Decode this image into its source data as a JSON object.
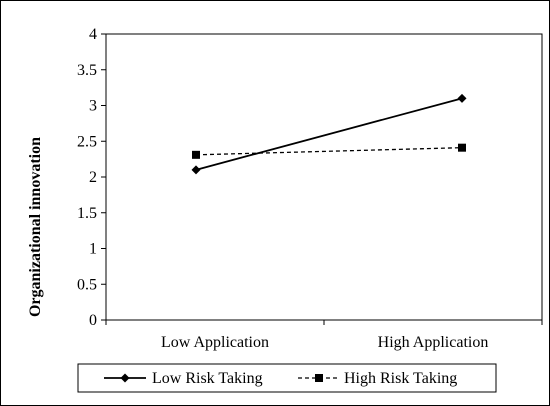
{
  "chart_data": {
    "type": "line",
    "title": "",
    "xlabel": "",
    "ylabel": "Organizational innovation",
    "categories": [
      "Low Application",
      "High Application"
    ],
    "ylim": [
      0,
      4
    ],
    "yticks": [
      "0",
      "0.5",
      "1",
      "1.5",
      "2",
      "2.5",
      "3",
      "3.5",
      "4"
    ],
    "grid": false,
    "legend_position": "bottom",
    "series": [
      {
        "name": "Low Risk Taking",
        "values": [
          2.1,
          3.1
        ],
        "marker": "diamond",
        "line": "solid",
        "color": "#000000"
      },
      {
        "name": "High Risk Taking",
        "values": [
          2.31,
          2.41
        ],
        "marker": "square",
        "line": "dashed",
        "color": "#000000"
      }
    ]
  }
}
